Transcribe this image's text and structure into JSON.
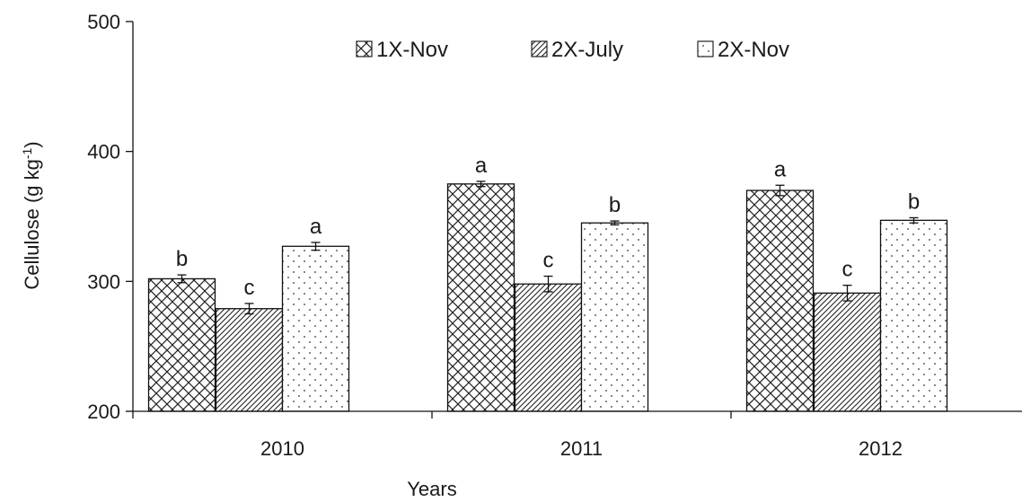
{
  "chart_data": {
    "type": "bar",
    "xlabel": "Years",
    "ylabel": "Cellulose (g kg",
    "ylabel_sup": "-1",
    "ylabel_close": ")",
    "ylim": [
      200,
      500
    ],
    "yticks": [
      200,
      300,
      400,
      500
    ],
    "grid": false,
    "legend_position": "top-center",
    "categories": [
      "2010",
      "2011",
      "2012"
    ],
    "series": [
      {
        "name": "1X-Nov",
        "pattern": "crosshatch",
        "values": [
          302,
          375,
          370
        ],
        "errors": [
          3,
          2,
          4
        ],
        "letters": [
          "b",
          "a",
          "a"
        ]
      },
      {
        "name": "2X-July",
        "pattern": "diagonal",
        "values": [
          279,
          298,
          291
        ],
        "errors": [
          4,
          6,
          6
        ],
        "letters": [
          "c",
          "c",
          "c"
        ]
      },
      {
        "name": "2X-Nov",
        "pattern": "dots",
        "values": [
          327,
          345,
          347
        ],
        "errors": [
          3,
          1.5,
          2
        ],
        "letters": [
          "a",
          "b",
          "b"
        ]
      }
    ]
  }
}
